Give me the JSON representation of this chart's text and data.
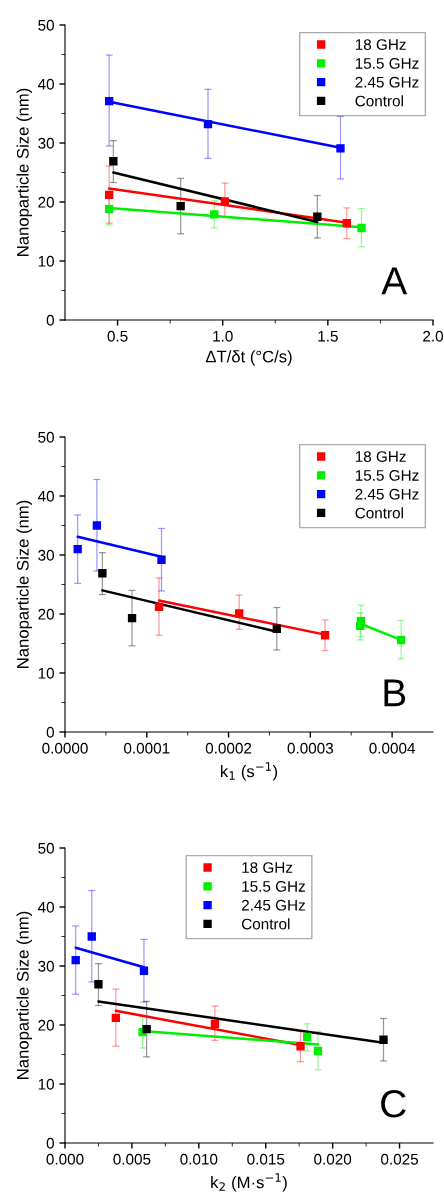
{
  "chart_data": [
    {
      "type": "scatter",
      "xlabel": "ΔT/δt (°C/s)",
      "ylabel": "Nanoparticle Size (nm)",
      "annotations": [
        "A"
      ],
      "legend": "top right",
      "xlim": [
        0.25,
        2.0
      ],
      "xticks": [
        {
          "value": 0.5,
          "label": "0.5"
        },
        {
          "value": 1.0,
          "label": "1.0"
        },
        {
          "value": 1.5,
          "label": "1.5"
        },
        {
          "value": 2.0,
          "label": "2.0"
        }
      ],
      "ylim": [
        0,
        50
      ],
      "yticks": [
        0,
        10,
        20,
        30,
        40,
        50
      ],
      "series": [
        {
          "name": "18 GHz",
          "color": "#ff0000",
          "marker": "square",
          "x": [
            0.46,
            1.01,
            1.59
          ],
          "values": [
            21.2,
            20.1,
            16.4
          ],
          "errors": [
            [
              16.4,
              26.1
            ],
            [
              17.4,
              23.2
            ],
            [
              13.8,
              19.0
            ]
          ]
        },
        {
          "name": "15.5 GHz",
          "color": "#00ee00",
          "marker": "square",
          "x": [
            0.46,
            0.96,
            1.66
          ],
          "values": [
            18.8,
            17.9,
            15.6
          ],
          "errors": [
            [
              16.1,
              21.5
            ],
            [
              15.6,
              20.2
            ],
            [
              12.4,
              18.9
            ]
          ]
        },
        {
          "name": "2.45 GHz",
          "color": "#0000ff",
          "marker": "square",
          "x": [
            0.46,
            0.93,
            1.56
          ],
          "values": [
            37.1,
            33.2,
            29.1
          ],
          "errors": [
            [
              29.5,
              44.9
            ],
            [
              27.4,
              39.1
            ],
            [
              23.9,
              34.5
            ]
          ]
        },
        {
          "name": "Control",
          "color": "#000000",
          "marker": "square",
          "x": [
            0.48,
            0.8,
            1.45
          ],
          "values": [
            26.9,
            19.3,
            17.5
          ],
          "errors": [
            [
              23.3,
              30.4
            ],
            [
              14.6,
              24.0
            ],
            [
              13.9,
              21.1
            ]
          ]
        },
        {
          "type": "line",
          "color": "#ff0000",
          "x": [
            0.46,
            1.59
          ],
          "values": [
            22.3,
            16.5
          ]
        },
        {
          "type": "line",
          "color": "#00ee00",
          "x": [
            0.46,
            1.66
          ],
          "values": [
            19.0,
            15.7
          ]
        },
        {
          "type": "line",
          "color": "#0000ff",
          "x": [
            0.46,
            1.56
          ],
          "values": [
            37.0,
            29.2
          ]
        },
        {
          "type": "line",
          "color": "#000000",
          "x": [
            0.48,
            1.45
          ],
          "values": [
            25.0,
            16.6
          ]
        }
      ]
    },
    {
      "type": "scatter",
      "xlabel": "k$_{1}$ (s$^{−1}$)",
      "ylabel": "Nanoparticle Size (nm)",
      "annotations": [
        "B"
      ],
      "legend": "top right",
      "xlim": [
        0,
        0.00045
      ],
      "xticks": [
        {
          "value": 0,
          "label": "0.0000"
        },
        {
          "value": 0.0001,
          "label": "0.0001"
        },
        {
          "value": 0.0002,
          "label": "0.0002"
        },
        {
          "value": 0.0003,
          "label": "0.0003"
        },
        {
          "value": 0.0004,
          "label": "0.0004"
        }
      ],
      "ylim": [
        0,
        50
      ],
      "yticks": [
        0,
        10,
        20,
        30,
        40,
        50
      ],
      "series": [
        {
          "name": "18 GHz",
          "color": "#ff0000",
          "marker": "square",
          "x": [
            0.000115,
            0.000213,
            0.000318
          ],
          "values": [
            21.2,
            20.1,
            16.4
          ],
          "errors": [
            [
              16.4,
              26.1
            ],
            [
              17.4,
              23.2
            ],
            [
              13.8,
              19.0
            ]
          ]
        },
        {
          "name": "15.5 GHz",
          "color": "#00ee00",
          "marker": "square",
          "x": [
            0.000361,
            0.000362,
            0.000411
          ],
          "values": [
            18.0,
            18.8,
            15.6
          ],
          "errors": [
            [
              15.6,
              20.2
            ],
            [
              16.1,
              21.5
            ],
            [
              12.4,
              18.9
            ]
          ]
        },
        {
          "name": "2.45 GHz",
          "color": "#0000ff",
          "marker": "square",
          "x": [
            1.55e-05,
            3.9e-05,
            0.000118
          ],
          "values": [
            31.0,
            35.0,
            29.2
          ],
          "errors": [
            [
              25.2,
              36.8
            ],
            [
              27.3,
              42.8
            ],
            [
              23.9,
              34.5
            ]
          ]
        },
        {
          "name": "Control",
          "color": "#000000",
          "marker": "square",
          "x": [
            4.57e-05,
            8.2e-05,
            0.000259
          ],
          "values": [
            26.9,
            19.3,
            17.5
          ],
          "errors": [
            [
              23.3,
              30.4
            ],
            [
              14.6,
              24.0
            ],
            [
              13.9,
              21.1
            ]
          ]
        },
        {
          "type": "line",
          "color": "#ff0000",
          "x": [
            0.000115,
            0.000318
          ],
          "values": [
            22.3,
            16.5
          ]
        },
        {
          "type": "line",
          "color": "#00ee00",
          "x": [
            0.000362,
            0.000411
          ],
          "values": [
            18.3,
            15.6
          ]
        },
        {
          "type": "line",
          "color": "#0000ff",
          "x": [
            1.55e-05,
            0.000118
          ],
          "values": [
            33.1,
            29.7
          ]
        },
        {
          "type": "line",
          "color": "#000000",
          "x": [
            4.57e-05,
            0.000259
          ],
          "values": [
            24.0,
            17.0
          ]
        }
      ]
    },
    {
      "type": "scatter",
      "xlabel": "k$_{2}$ (M·s$^{−1}$)",
      "ylabel": "Nanoparticle Size (nm)",
      "annotations": [
        "C"
      ],
      "legend": "top",
      "xlim": [
        0,
        0.0275
      ],
      "xticks": [
        {
          "value": 0,
          "label": "0.000"
        },
        {
          "value": 0.005,
          "label": "0.005"
        },
        {
          "value": 0.01,
          "label": "0.010"
        },
        {
          "value": 0.015,
          "label": "0.015"
        },
        {
          "value": 0.02,
          "label": "0.020"
        },
        {
          "value": 0.025,
          "label": "0.025"
        }
      ],
      "ylim": [
        0,
        50
      ],
      "yticks": [
        0,
        10,
        20,
        30,
        40,
        50
      ],
      "series": [
        {
          "name": "18 GHz",
          "color": "#ff0000",
          "marker": "square",
          "x": [
            0.0038,
            0.0112,
            0.0176
          ],
          "values": [
            21.2,
            20.2,
            16.4
          ],
          "errors": [
            [
              16.4,
              26.1
            ],
            [
              17.4,
              23.2
            ],
            [
              13.8,
              19.0
            ]
          ]
        },
        {
          "name": "15.5 GHz",
          "color": "#00ee00",
          "marker": "square",
          "x": [
            0.0058,
            0.0181,
            0.0189
          ],
          "values": [
            18.8,
            18.0,
            15.6
          ],
          "errors": [
            [
              16.1,
              21.5
            ],
            [
              15.6,
              20.2
            ],
            [
              12.4,
              18.9
            ]
          ]
        },
        {
          "name": "2.45 GHz",
          "color": "#0000ff",
          "marker": "square",
          "x": [
            0.0008,
            0.002,
            0.0059
          ],
          "values": [
            31.0,
            35.0,
            29.2
          ],
          "errors": [
            [
              25.2,
              36.8
            ],
            [
              27.3,
              42.8
            ],
            [
              23.9,
              34.5
            ]
          ]
        },
        {
          "name": "Control",
          "color": "#000000",
          "marker": "square",
          "x": [
            0.0025,
            0.0061,
            0.0238
          ],
          "values": [
            26.9,
            19.3,
            17.5
          ],
          "errors": [
            [
              23.3,
              30.4
            ],
            [
              14.6,
              24.0
            ],
            [
              13.9,
              21.1
            ]
          ]
        },
        {
          "type": "line",
          "color": "#ff0000",
          "x": [
            0.0038,
            0.0176
          ],
          "values": [
            22.4,
            16.6
          ]
        },
        {
          "type": "line",
          "color": "#00ee00",
          "x": [
            0.0058,
            0.0189
          ],
          "values": [
            19.0,
            16.7
          ]
        },
        {
          "type": "line",
          "color": "#0000ff",
          "x": [
            0.0008,
            0.0059
          ],
          "values": [
            33.1,
            29.8
          ]
        },
        {
          "type": "line",
          "color": "#000000",
          "x": [
            0.0025,
            0.0238
          ],
          "values": [
            24.0,
            17.0
          ]
        }
      ]
    }
  ]
}
